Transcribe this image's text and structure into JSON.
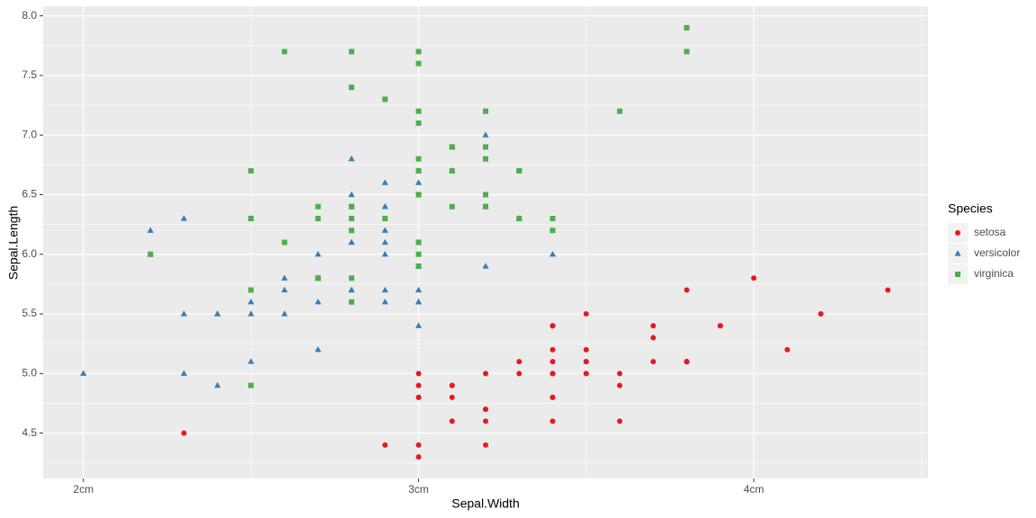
{
  "chart_data": {
    "type": "scatter",
    "x_label": "Sepal.Width",
    "y_label": "Sepal.Length",
    "legend_title": "Species",
    "xlim": [
      1.88,
      4.52
    ],
    "ylim": [
      4.12,
      8.08
    ],
    "xticks": [
      {
        "value": 2,
        "label": "2cm"
      },
      {
        "value": 3,
        "label": "3cm"
      },
      {
        "value": 4,
        "label": "4cm"
      }
    ],
    "yticks": [
      4.5,
      {
        "value": 5,
        "label": "5.0"
      },
      5.5,
      {
        "value": 6,
        "label": "6.0"
      },
      6.5,
      {
        "value": 7,
        "label": "7.0"
      },
      7.5,
      {
        "value": 8,
        "label": "8.0"
      }
    ],
    "grid": true,
    "legend": "right",
    "series": [
      {
        "name": "setosa",
        "color": "#E41A1C",
        "shape": "circle",
        "x": [
          3.5,
          3.0,
          3.2,
          3.1,
          3.6,
          3.9,
          3.4,
          3.4,
          2.9,
          3.1,
          3.7,
          3.4,
          3.0,
          3.0,
          4.0,
          4.4,
          3.9,
          3.5,
          3.8,
          3.8,
          3.4,
          3.7,
          3.6,
          3.3,
          3.4,
          3.0,
          3.4,
          3.5,
          3.4,
          3.2,
          3.1,
          3.4,
          4.1,
          4.2,
          3.1,
          3.2,
          3.5,
          3.6,
          3.0,
          3.4,
          3.5,
          2.3,
          3.2,
          3.5,
          3.8,
          3.0,
          3.8,
          3.2,
          3.7,
          3.3
        ],
        "values": [
          5.1,
          4.9,
          4.7,
          4.6,
          5.0,
          5.4,
          4.6,
          5.0,
          4.4,
          4.9,
          5.4,
          4.8,
          4.8,
          4.3,
          5.8,
          5.7,
          5.4,
          5.1,
          5.7,
          5.1,
          5.4,
          5.1,
          4.6,
          5.1,
          4.8,
          5.0,
          5.0,
          5.2,
          5.2,
          4.7,
          4.8,
          5.4,
          5.2,
          5.5,
          4.9,
          5.0,
          5.5,
          4.9,
          4.4,
          5.1,
          5.0,
          4.5,
          4.4,
          5.0,
          5.1,
          4.8,
          5.1,
          4.6,
          5.3,
          5.0
        ]
      },
      {
        "name": "versicolor",
        "color": "#377EB8",
        "shape": "triangle",
        "x": [
          3.2,
          3.2,
          3.1,
          2.3,
          2.8,
          2.8,
          3.3,
          2.4,
          2.9,
          2.7,
          2.0,
          3.0,
          2.2,
          2.9,
          2.9,
          3.1,
          3.0,
          2.7,
          2.2,
          2.5,
          3.2,
          2.8,
          2.5,
          2.8,
          2.9,
          3.0,
          2.8,
          3.0,
          2.9,
          2.6,
          2.4,
          2.4,
          2.7,
          2.7,
          3.0,
          3.4,
          3.1,
          2.3,
          3.0,
          2.5,
          2.6,
          3.0,
          2.6,
          2.3,
          2.7,
          3.0,
          2.9,
          2.9,
          2.5,
          2.8
        ],
        "values": [
          7.0,
          6.4,
          6.9,
          5.5,
          6.5,
          5.7,
          6.3,
          4.9,
          6.6,
          5.2,
          5.0,
          5.9,
          6.0,
          6.1,
          5.6,
          6.7,
          5.6,
          5.8,
          6.2,
          5.6,
          5.9,
          6.1,
          6.3,
          6.1,
          6.4,
          6.6,
          6.8,
          6.7,
          6.0,
          5.7,
          5.5,
          5.5,
          5.8,
          6.0,
          5.4,
          6.0,
          6.7,
          6.3,
          5.6,
          5.5,
          5.5,
          6.1,
          5.8,
          5.0,
          5.6,
          5.7,
          5.7,
          6.2,
          5.1,
          5.7
        ]
      },
      {
        "name": "virginica",
        "color": "#4DAF4A",
        "shape": "square",
        "x": [
          3.3,
          2.7,
          3.0,
          2.9,
          3.0,
          3.0,
          2.5,
          2.9,
          2.5,
          3.6,
          3.2,
          2.7,
          3.0,
          2.5,
          2.8,
          3.2,
          3.0,
          3.8,
          2.6,
          2.2,
          3.2,
          2.8,
          2.8,
          2.7,
          3.3,
          3.2,
          2.8,
          3.0,
          2.8,
          3.0,
          2.8,
          3.8,
          2.8,
          2.8,
          2.6,
          3.0,
          3.4,
          3.1,
          3.0,
          3.1,
          3.1,
          3.1,
          2.7,
          3.2,
          3.3,
          3.0,
          2.5,
          3.0,
          3.4,
          3.0
        ],
        "values": [
          6.3,
          5.8,
          7.1,
          6.3,
          6.5,
          7.6,
          4.9,
          7.3,
          6.7,
          7.2,
          6.5,
          6.4,
          6.8,
          5.7,
          5.8,
          6.4,
          6.5,
          7.7,
          7.7,
          6.0,
          6.9,
          5.6,
          7.7,
          6.3,
          6.7,
          7.2,
          6.2,
          6.1,
          6.4,
          7.2,
          7.4,
          7.9,
          6.4,
          6.3,
          6.1,
          7.7,
          6.3,
          6.4,
          6.0,
          6.9,
          6.7,
          6.9,
          5.8,
          6.8,
          6.7,
          6.7,
          6.3,
          6.5,
          6.2,
          5.9
        ]
      }
    ]
  }
}
